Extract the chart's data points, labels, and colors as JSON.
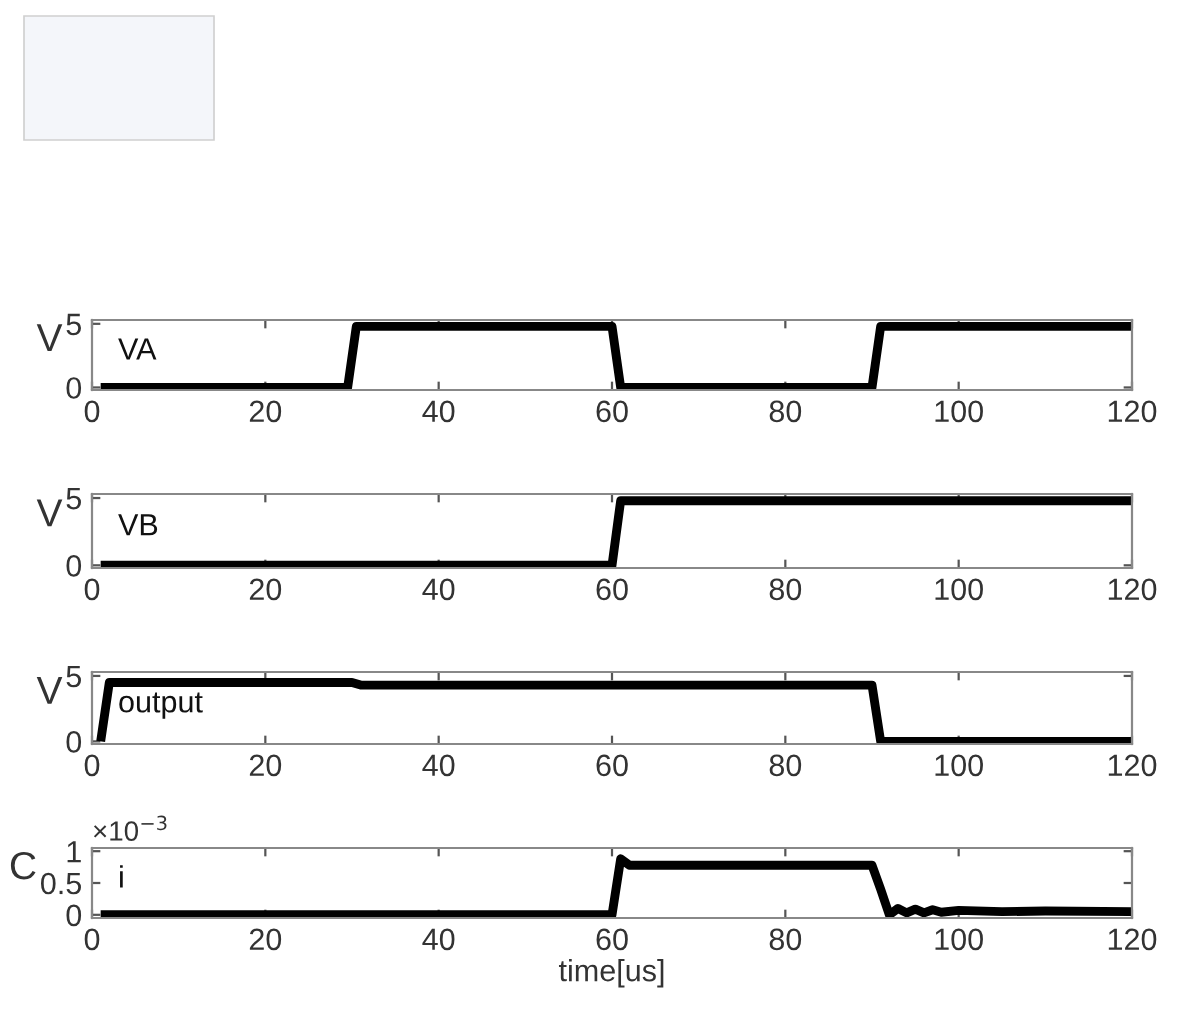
{
  "chart_data": [
    {
      "type": "line",
      "ylabel": "V",
      "annotations": [
        "VA"
      ],
      "x": [
        1,
        29.5,
        30.5,
        60,
        61,
        90,
        91,
        120
      ],
      "series": [
        {
          "color": "#000000",
          "values": [
            0,
            0,
            4.8,
            4.8,
            0,
            0,
            4.8,
            4.8
          ]
        }
      ],
      "xlim": [
        0,
        120
      ],
      "xticks": [
        0,
        20,
        40,
        60,
        80,
        100,
        120
      ],
      "ylim": [
        -0.2,
        5.3
      ],
      "yticks": [
        0,
        5
      ],
      "grid": false
    },
    {
      "type": "line",
      "ylabel": "V",
      "annotations": [
        "VB"
      ],
      "x": [
        1,
        60,
        61,
        120
      ],
      "series": [
        {
          "color": "#000000",
          "values": [
            0,
            0,
            4.8,
            4.8
          ]
        }
      ],
      "xlim": [
        0,
        120
      ],
      "xticks": [
        0,
        20,
        40,
        60,
        80,
        100,
        120
      ],
      "ylim": [
        -0.2,
        5.3
      ],
      "yticks": [
        0,
        5
      ],
      "grid": false
    },
    {
      "type": "line",
      "ylabel": "V",
      "annotations": [
        "output"
      ],
      "x": [
        1,
        2,
        30,
        31,
        90,
        91,
        120
      ],
      "series": [
        {
          "color": "#000000",
          "values": [
            0,
            4.5,
            4.5,
            4.3,
            4.3,
            0,
            0
          ]
        }
      ],
      "xlim": [
        0,
        120
      ],
      "xticks": [
        0,
        20,
        40,
        60,
        80,
        100,
        120
      ],
      "ylim": [
        -0.2,
        5.3
      ],
      "yticks": [
        0,
        5
      ],
      "grid": false
    },
    {
      "type": "line",
      "ylabel": "C",
      "xlabel": "time[us]",
      "annotations": [
        "i",
        "×10$^{−3}$"
      ],
      "x": [
        1,
        60,
        61,
        62,
        90,
        91,
        92,
        93,
        94,
        95,
        96,
        97,
        98,
        100,
        105,
        110,
        120
      ],
      "series": [
        {
          "color": "#000000",
          "values": [
            0,
            0,
            0.88,
            0.78,
            0.78,
            0.4,
            0,
            0.1,
            0.03,
            0.09,
            0.03,
            0.08,
            0.04,
            0.07,
            0.05,
            0.06,
            0.05
          ]
        }
      ],
      "xlim": [
        0,
        120
      ],
      "xticks": [
        0,
        20,
        40,
        60,
        80,
        100,
        120
      ],
      "ylim": [
        -0.05,
        1.05
      ],
      "yticks": [
        0,
        0.5,
        1
      ],
      "grid": false
    }
  ]
}
